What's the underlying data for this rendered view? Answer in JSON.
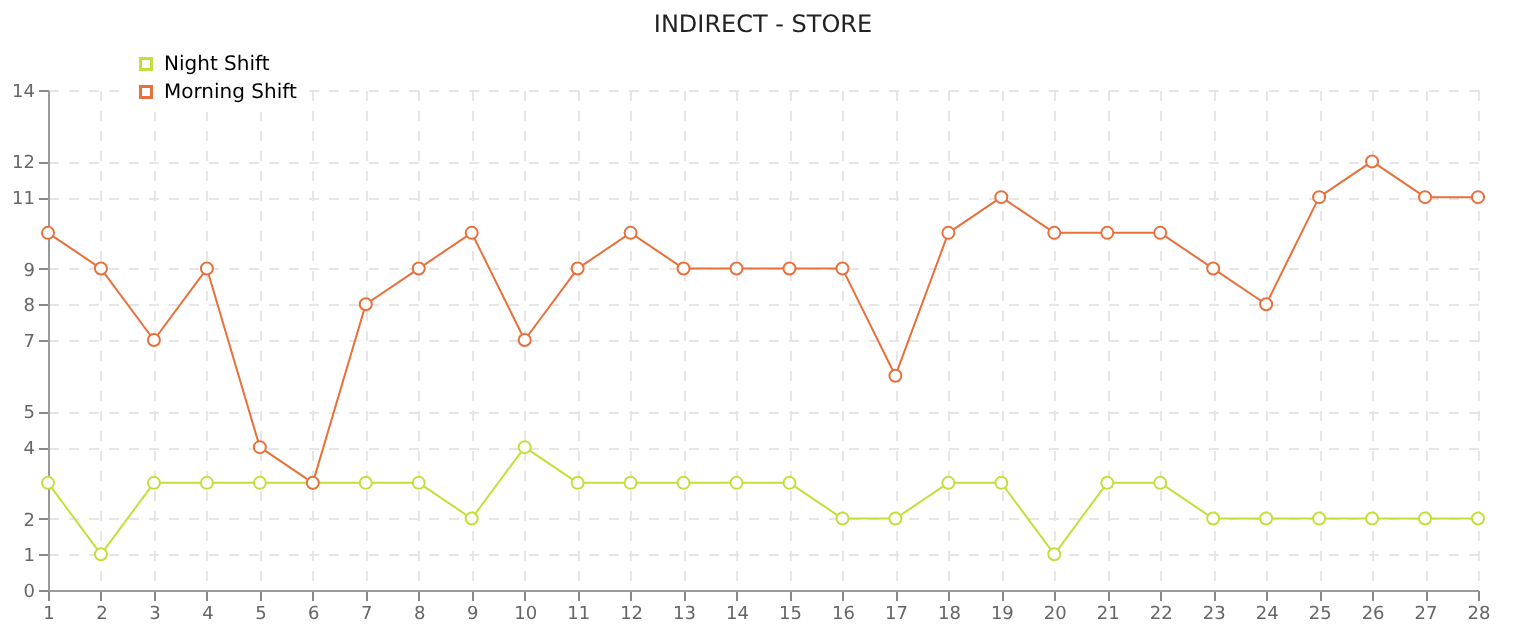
{
  "chart_data": {
    "type": "line",
    "title": "INDIRECT - STORE",
    "x": [
      1,
      2,
      3,
      4,
      5,
      6,
      7,
      8,
      9,
      10,
      11,
      12,
      13,
      14,
      15,
      16,
      17,
      18,
      19,
      20,
      21,
      22,
      23,
      24,
      25,
      26,
      27,
      28
    ],
    "series": [
      {
        "name": "Night Shift",
        "color": "#c4df3a",
        "values": [
          3,
          1,
          3,
          3,
          3,
          3,
          3,
          3,
          2,
          4,
          3,
          3,
          3,
          3,
          3,
          2,
          2,
          3,
          3,
          1,
          3,
          3,
          2,
          2,
          2,
          2,
          2,
          2
        ]
      },
      {
        "name": "Morning Shift",
        "color": "#e8703a",
        "values": [
          10,
          9,
          7,
          9,
          4,
          3,
          8,
          9,
          10,
          7,
          9,
          10,
          9,
          9,
          9,
          9,
          6,
          10,
          11,
          10,
          10,
          10,
          9,
          8,
          11,
          12,
          11,
          11
        ]
      }
    ],
    "xlim": [
      1,
      28
    ],
    "xticks": [
      1,
      2,
      3,
      4,
      5,
      6,
      7,
      8,
      9,
      10,
      11,
      12,
      13,
      14,
      15,
      16,
      17,
      18,
      19,
      20,
      21,
      22,
      23,
      24,
      25,
      26,
      27,
      28
    ],
    "ylim": [
      0,
      14
    ],
    "yticks": [
      0,
      1,
      2,
      4,
      5,
      7,
      8,
      9,
      11,
      12,
      14
    ],
    "grid": true,
    "legend": "top left",
    "marker": "circle",
    "line_style": "solid"
  }
}
